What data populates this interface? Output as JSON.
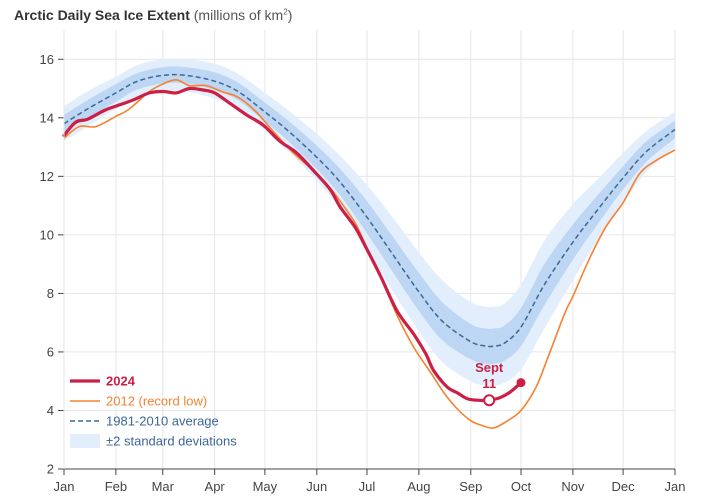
{
  "chart_data": {
    "type": "line",
    "title": "Arctic Daily Sea Ice Extent",
    "title_unit_prefix": "(millions of km",
    "title_unit_sup": "2",
    "title_unit_suffix": ")",
    "x_tick_labels": [
      "Jan",
      "Feb",
      "Mar",
      "Apr",
      "May",
      "Jun",
      "Jul",
      "Aug",
      "Sep",
      "Oct",
      "Nov",
      "Dec",
      "Jan"
    ],
    "y_ticks": [
      2,
      4,
      6,
      8,
      10,
      12,
      14,
      16
    ],
    "xlim": [
      1,
      366
    ],
    "ylim": [
      2,
      17
    ],
    "grid": true,
    "legend_position": "bottom-left",
    "colors": {
      "s2024": "#cc1f45",
      "s2012": "#f58231",
      "average": "#3d6796",
      "band_outer": "#e2eefb",
      "band_inner": "#bcd6f3",
      "grid": "#e6e6e6",
      "axis": "#444444"
    },
    "series": [
      {
        "name": "1981-2010 average",
        "key": "average",
        "x": [
          1,
          15,
          32,
          45,
          60,
          74,
          91,
          105,
          121,
          135,
          152,
          166,
          182,
          196,
          213,
          227,
          244,
          253,
          258,
          264,
          274,
          288,
          305,
          319,
          335,
          349,
          366
        ],
        "y": [
          13.8,
          14.3,
          14.85,
          15.25,
          15.45,
          15.45,
          15.25,
          14.9,
          14.2,
          13.55,
          12.65,
          11.8,
          10.6,
          9.45,
          8.05,
          7.05,
          6.35,
          6.2,
          6.2,
          6.3,
          6.85,
          8.3,
          9.75,
          10.8,
          11.95,
          12.85,
          13.6
        ]
      },
      {
        "name": "2012 (record low)",
        "key": "s2012",
        "x": [
          1,
          10,
          20,
          32,
          40,
          52,
          60,
          68,
          76,
          86,
          95,
          105,
          115,
          125,
          138,
          152,
          160,
          166,
          175,
          182,
          190,
          200,
          210,
          220,
          228,
          236,
          244,
          250,
          256,
          260,
          266,
          274,
          283,
          290,
          300,
          305,
          315,
          325,
          335,
          345,
          355,
          366
        ],
        "y": [
          13.3,
          13.7,
          13.7,
          14.05,
          14.3,
          14.9,
          15.15,
          15.3,
          15.1,
          15.1,
          14.9,
          14.7,
          14.25,
          13.6,
          12.8,
          12.1,
          11.6,
          11.15,
          10.4,
          9.55,
          8.6,
          7.25,
          6.15,
          5.3,
          4.6,
          4.05,
          3.65,
          3.5,
          3.4,
          3.45,
          3.65,
          4.0,
          4.8,
          5.8,
          7.3,
          7.9,
          9.2,
          10.3,
          11.1,
          12.1,
          12.55,
          12.9
        ]
      },
      {
        "name": "2024",
        "key": "s2024",
        "x": [
          1,
          8,
          15,
          25,
          32,
          42,
          52,
          60,
          68,
          76,
          84,
          91,
          100,
          110,
          120,
          130,
          140,
          150,
          160,
          166,
          175,
          182,
          190,
          200,
          210,
          217,
          222,
          230,
          236,
          242,
          248,
          255,
          262,
          268,
          274
        ],
        "y": [
          13.4,
          13.85,
          13.95,
          14.25,
          14.4,
          14.6,
          14.85,
          14.9,
          14.85,
          15.0,
          14.95,
          14.85,
          14.5,
          14.1,
          13.75,
          13.2,
          12.8,
          12.2,
          11.55,
          10.95,
          10.25,
          9.5,
          8.6,
          7.4,
          6.6,
          5.95,
          5.35,
          4.8,
          4.6,
          4.4,
          4.35,
          4.35,
          4.45,
          4.65,
          4.95
        ]
      }
    ],
    "band": {
      "name": "±2 standard deviations",
      "x": [
        1,
        15,
        32,
        45,
        60,
        74,
        91,
        105,
        121,
        135,
        152,
        166,
        182,
        196,
        213,
        227,
        244,
        253,
        258,
        264,
        274,
        288,
        305,
        319,
        335,
        349,
        366
      ],
      "inner_spread": [
        0.3,
        0.3,
        0.3,
        0.28,
        0.28,
        0.28,
        0.3,
        0.3,
        0.32,
        0.35,
        0.4,
        0.45,
        0.55,
        0.6,
        0.65,
        0.65,
        0.6,
        0.6,
        0.6,
        0.6,
        0.65,
        0.7,
        0.6,
        0.5,
        0.4,
        0.35,
        0.3
      ],
      "outer_spread": [
        0.6,
        0.6,
        0.55,
        0.55,
        0.55,
        0.55,
        0.6,
        0.6,
        0.65,
        0.7,
        0.8,
        0.9,
        1.1,
        1.25,
        1.35,
        1.4,
        1.35,
        1.35,
        1.35,
        1.35,
        1.45,
        1.5,
        1.3,
        1.05,
        0.85,
        0.7,
        0.6
      ]
    },
    "annotation": {
      "text_line1": "Sept",
      "text_line2": "11",
      "x": 255,
      "y": 4.35
    },
    "endpoint": {
      "x": 274,
      "y": 4.95
    },
    "legend": [
      {
        "key": "s2024",
        "label": "2024",
        "style": "thick"
      },
      {
        "key": "s2012",
        "label": "2012 (record low)",
        "style": "thin"
      },
      {
        "key": "average",
        "label": "1981-2010 average",
        "style": "dashed"
      },
      {
        "key": "band",
        "label": "±2 standard deviations",
        "style": "box"
      }
    ]
  }
}
